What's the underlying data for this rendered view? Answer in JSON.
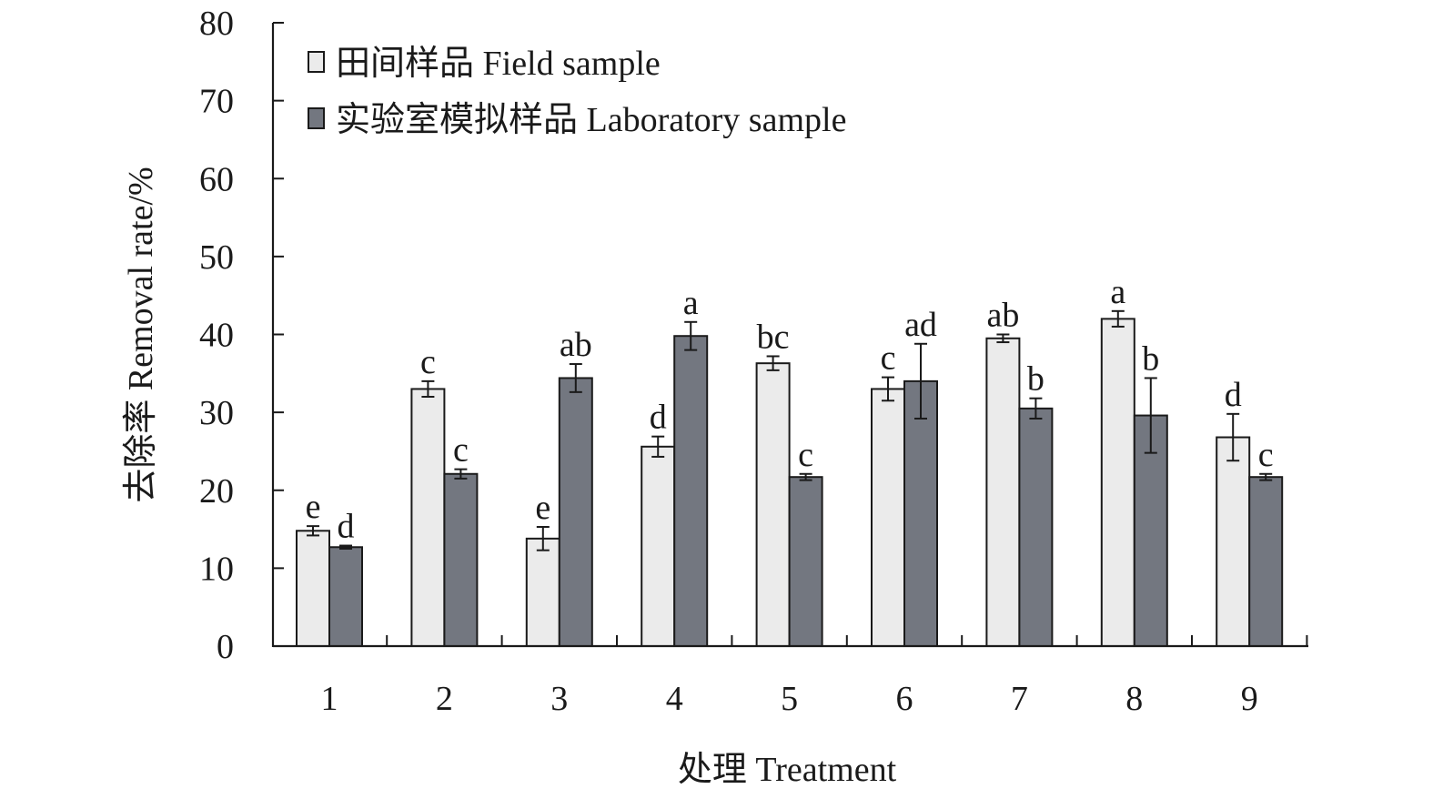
{
  "colors": {
    "field_fill": "#ebebeb",
    "lab_fill": "#737780",
    "axis": "#1a1a1a"
  },
  "chart_data": {
    "type": "bar",
    "xlabel": "处理 Treatment",
    "ylabel": "去除率 Removal rate/%",
    "ylim": [
      0,
      80
    ],
    "yticks": [
      0,
      10,
      20,
      30,
      40,
      50,
      60,
      70,
      80
    ],
    "categories": [
      "1",
      "2",
      "3",
      "4",
      "5",
      "6",
      "7",
      "8",
      "9"
    ],
    "legend_position": "top-left",
    "grid": false,
    "series": [
      {
        "name": "田间样品 Field sample",
        "values": [
          14.8,
          33.0,
          13.8,
          25.6,
          36.3,
          33.0,
          39.5,
          42.0,
          26.8
        ],
        "errors": [
          0.6,
          1.0,
          1.5,
          1.3,
          0.9,
          1.5,
          0.5,
          1.0,
          3.0
        ],
        "letters": [
          "e",
          "c",
          "e",
          "d",
          "bc",
          "c",
          "ab",
          "a",
          "d"
        ]
      },
      {
        "name": "实验室模拟样品 Laboratory sample",
        "values": [
          12.7,
          22.1,
          34.4,
          39.8,
          21.7,
          34.0,
          30.5,
          29.6,
          21.7
        ],
        "errors": [
          0.2,
          0.6,
          1.8,
          1.8,
          0.4,
          4.8,
          1.3,
          4.8,
          0.4
        ],
        "letters": [
          "d",
          "c",
          "ab",
          "a",
          "c",
          "ad",
          "b",
          "b",
          "c"
        ]
      }
    ]
  }
}
